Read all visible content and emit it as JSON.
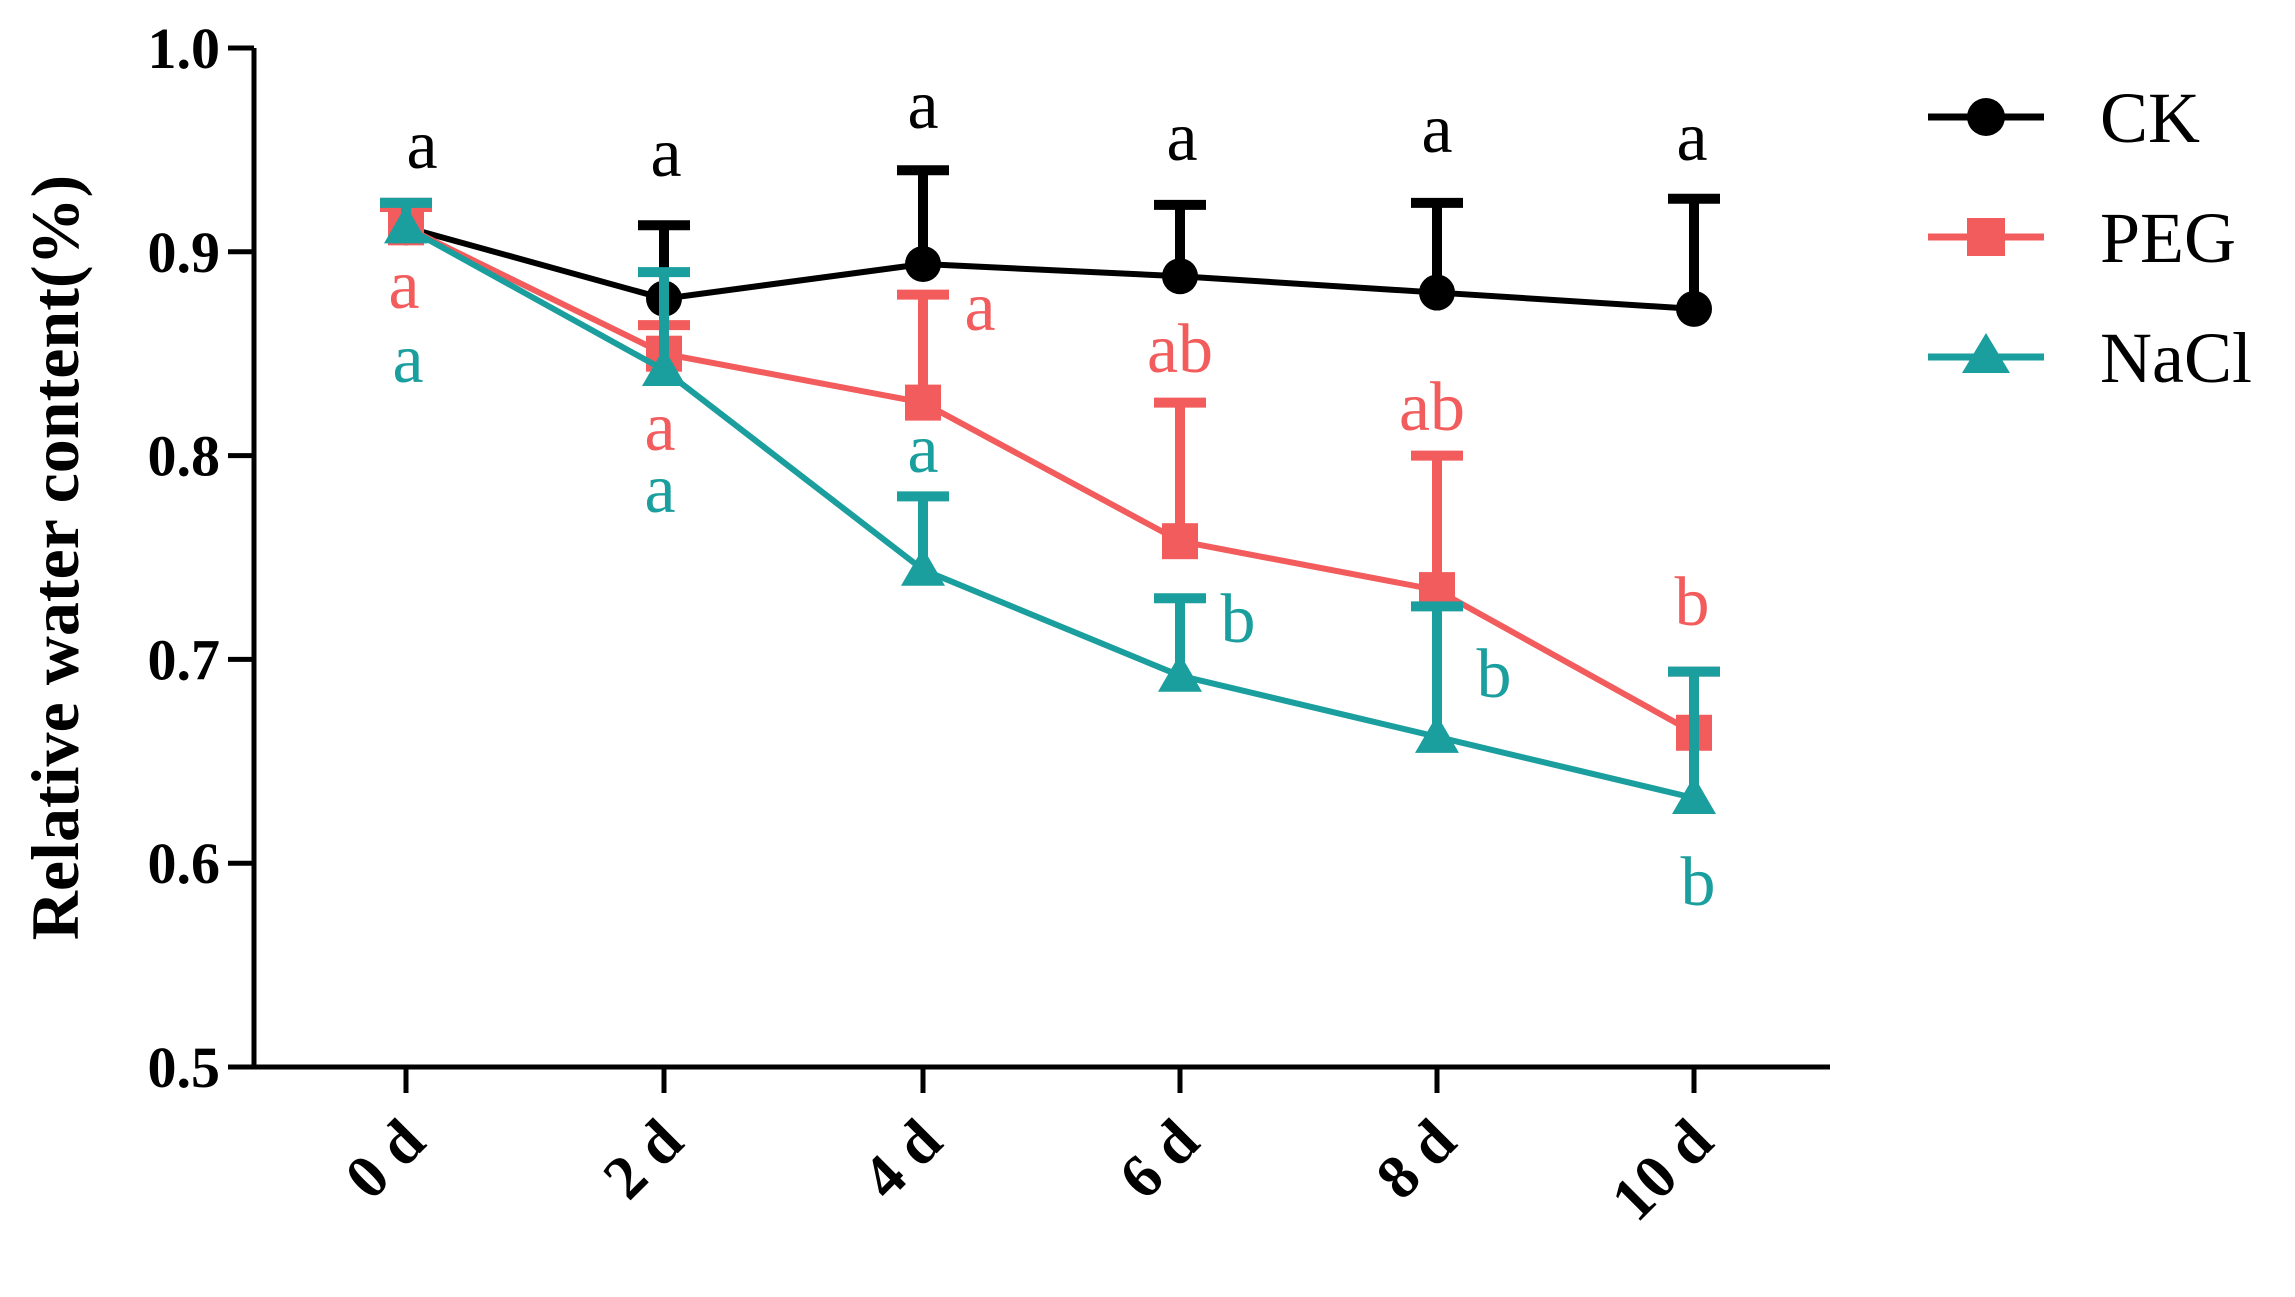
{
  "chart_data": {
    "type": "line",
    "title": "",
    "xlabel": "",
    "ylabel": "Relative water content(%)",
    "categories": [
      "0 d",
      "2 d",
      "4 d",
      "6 d",
      "8 d",
      "10 d"
    ],
    "ylim": [
      0.5,
      1.0
    ],
    "yticks": [
      "0.5",
      "0.6",
      "0.7",
      "0.8",
      "0.9",
      "1.0"
    ],
    "grid": false,
    "legend_position": "top-right",
    "series": [
      {
        "name": "CK",
        "color": "#000000",
        "marker": "circle",
        "values": [
          0.912,
          0.877,
          0.894,
          0.888,
          0.88,
          0.872
        ],
        "error": [
          0.012,
          0.036,
          0.046,
          0.035,
          0.044,
          0.054
        ],
        "letters": [
          "a",
          "a",
          "a",
          "a",
          "a",
          "a"
        ]
      },
      {
        "name": "PEG",
        "color": "#f25c5c",
        "marker": "square",
        "values": [
          0.912,
          0.85,
          0.826,
          0.758,
          0.734,
          0.664
        ],
        "error": [
          0.01,
          0.014,
          0.053,
          0.068,
          0.066,
          0.03
        ],
        "letters": [
          "a",
          "a",
          "a",
          "ab",
          "ab",
          "b"
        ]
      },
      {
        "name": "NaCl",
        "color": "#1a9e9e",
        "marker": "triangle",
        "values": [
          0.912,
          0.842,
          0.744,
          0.692,
          0.662,
          0.632
        ],
        "error": [
          0.012,
          0.048,
          0.036,
          0.038,
          0.064,
          0.062
        ],
        "letters": [
          "a",
          "a",
          "a",
          "b",
          "b",
          "b"
        ]
      }
    ]
  }
}
